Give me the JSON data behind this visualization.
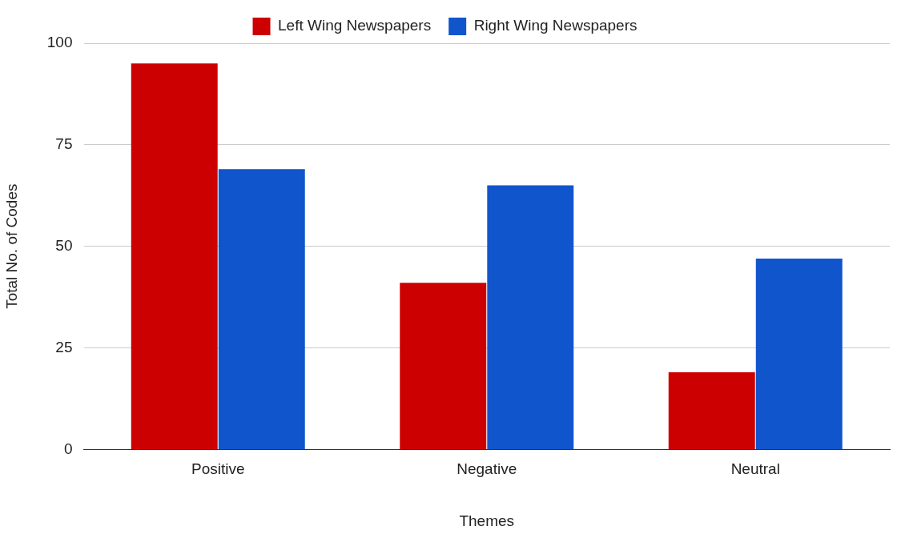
{
  "chart_data": {
    "type": "bar",
    "xlabel": "Themes",
    "ylabel": "Total No. of Codes",
    "categories": [
      "Positive",
      "Negative",
      "Neutral"
    ],
    "series": [
      {
        "name": "Left Wing Newspapers",
        "color": "#cc0000",
        "values": [
          95,
          41,
          19
        ]
      },
      {
        "name": "Right Wing Newspapers",
        "color": "#1155cc",
        "values": [
          69,
          65,
          47
        ]
      }
    ],
    "ylim": [
      0,
      100
    ],
    "yticks": [
      0,
      25,
      50,
      75,
      100
    ],
    "grid": "y",
    "legend": "top"
  }
}
